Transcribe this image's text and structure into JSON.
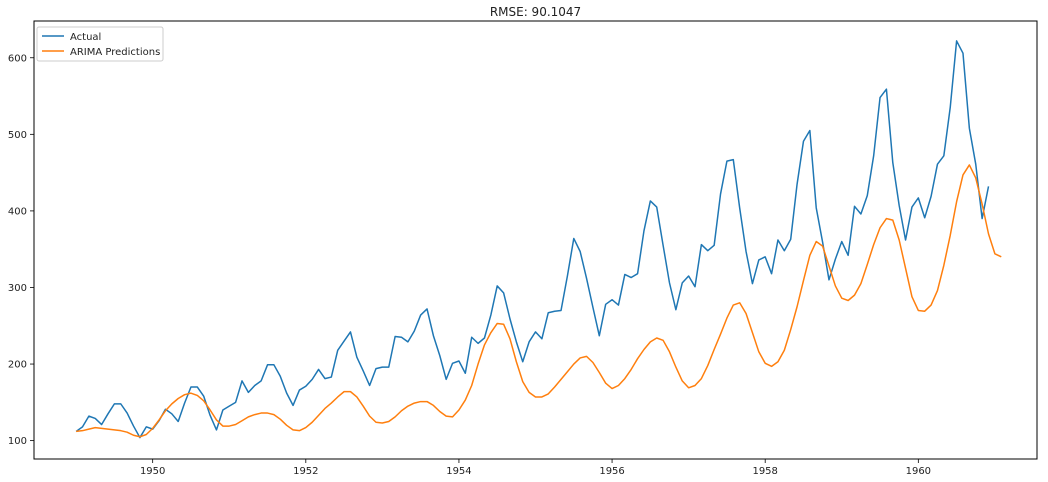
{
  "chart_data": {
    "type": "line",
    "title": "RMSE: 90.1047",
    "xlabel": "",
    "ylabel": "",
    "xlim": [
      1948.45,
      1961.55
    ],
    "ylim": [
      76,
      648
    ],
    "xticks": [
      1950,
      1952,
      1954,
      1956,
      1958,
      1960
    ],
    "yticks": [
      100,
      200,
      300,
      400,
      500,
      600
    ],
    "grid": false,
    "legend_position": "top-left",
    "x_start": 1949.0,
    "x_step": 0.083333,
    "series": [
      {
        "name": "Actual",
        "color": "#1f77b4",
        "values": [
          112,
          118,
          132,
          129,
          121,
          135,
          148,
          148,
          136,
          119,
          104,
          118,
          115,
          126,
          141,
          135,
          125,
          149,
          170,
          170,
          158,
          133,
          114,
          140,
          145,
          150,
          178,
          163,
          172,
          178,
          199,
          199,
          184,
          162,
          146,
          166,
          171,
          180,
          193,
          181,
          183,
          218,
          230,
          242,
          209,
          191,
          172,
          194,
          196,
          196,
          236,
          235,
          229,
          243,
          264,
          272,
          237,
          211,
          180,
          201,
          204,
          188,
          235,
          227,
          234,
          264,
          302,
          293,
          259,
          229,
          203,
          229,
          242,
          233,
          267,
          269,
          270,
          315,
          364,
          347,
          312,
          274,
          237,
          278,
          284,
          277,
          317,
          313,
          318,
          374,
          413,
          405,
          355,
          306,
          271,
          306,
          315,
          301,
          356,
          348,
          355,
          422,
          465,
          467,
          404,
          347,
          305,
          336,
          340,
          318,
          362,
          348,
          363,
          435,
          491,
          505,
          404,
          359,
          310,
          337,
          360,
          342,
          406,
          396,
          420,
          472,
          548,
          559,
          463,
          407,
          362,
          405,
          417,
          391,
          419,
          461,
          472,
          535,
          622,
          606,
          508,
          461,
          390,
          432
        ]
      },
      {
        "name": "ARIMA Predictions",
        "color": "#ff7f0e",
        "values": [
          112,
          113,
          115,
          117,
          116,
          115,
          114,
          113,
          111,
          107,
          105,
          108,
          116,
          127,
          139,
          148,
          155,
          160,
          162,
          159,
          152,
          140,
          127,
          119,
          119,
          121,
          126,
          131,
          134,
          136,
          136,
          134,
          128,
          120,
          114,
          113,
          117,
          124,
          133,
          142,
          149,
          157,
          164,
          164,
          157,
          145,
          132,
          124,
          123,
          125,
          131,
          139,
          145,
          149,
          151,
          151,
          146,
          138,
          132,
          131,
          140,
          153,
          172,
          200,
          225,
          241,
          253,
          252,
          233,
          203,
          177,
          163,
          157,
          157,
          161,
          170,
          180,
          190,
          200,
          208,
          210,
          202,
          189,
          175,
          168,
          172,
          181,
          193,
          207,
          219,
          229,
          234,
          231,
          216,
          196,
          178,
          169,
          172,
          181,
          198,
          219,
          239,
          260,
          277,
          280,
          266,
          241,
          216,
          201,
          197,
          203,
          218,
          245,
          275,
          309,
          342,
          360,
          354,
          328,
          302,
          286,
          283,
          290,
          305,
          330,
          356,
          378,
          390,
          388,
          362,
          325,
          288,
          270,
          269,
          277,
          296,
          329,
          368,
          412,
          447,
          460,
          443,
          409,
          370,
          344,
          340
        ]
      }
    ]
  }
}
